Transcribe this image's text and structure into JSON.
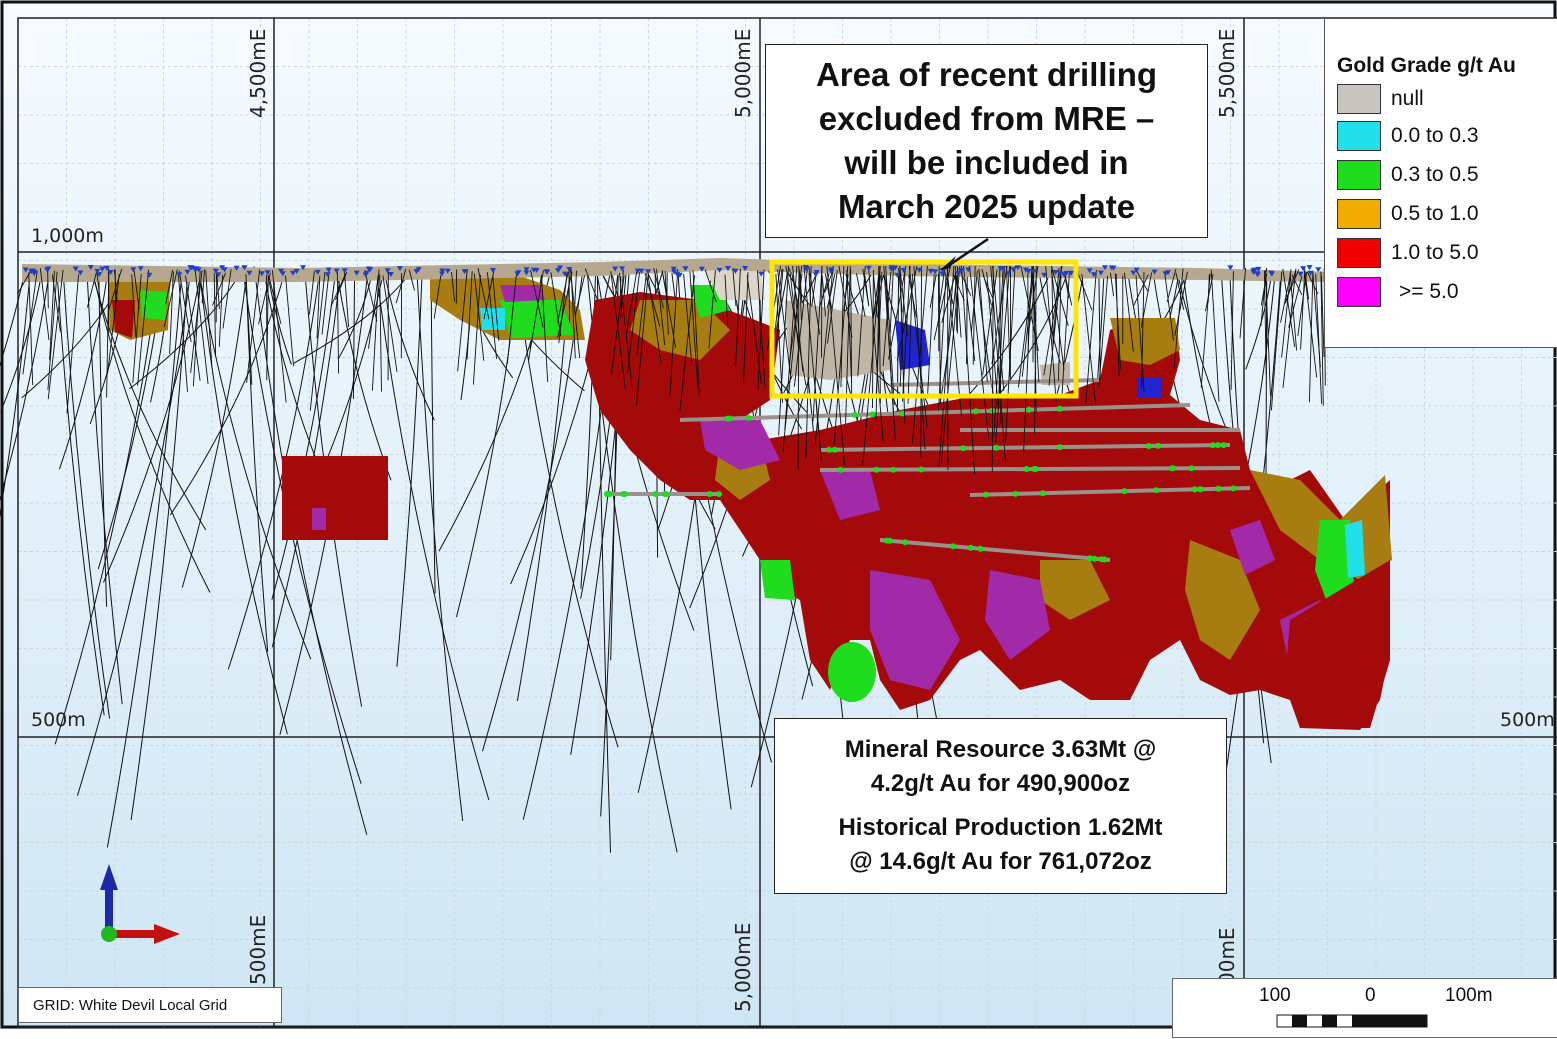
{
  "grid_labels": {
    "easting_top": [
      "4,500mE",
      "5,000mE",
      "5,500mE"
    ],
    "easting_bottom": [
      "500mE",
      "5,000mE",
      "00mE"
    ],
    "rl_left": [
      "1,000m",
      "500m"
    ],
    "rl_right": [
      "500m"
    ]
  },
  "callout": {
    "lines": [
      "Area of recent drilling",
      "excluded from MRE –",
      "will be included in",
      "March 2025 update"
    ]
  },
  "resource": {
    "line1": "Mineral Resource 3.63Mt @",
    "line2": "4.2g/t Au for 490,900oz",
    "line3": "Historical Production 1.62Mt",
    "line4": "@ 14.6g/t Au for 761,072oz"
  },
  "legend": {
    "title": "Gold Grade g/t Au",
    "items": [
      {
        "label": "null",
        "color": "#c8c4c0"
      },
      {
        "label": "0.0 to 0.3",
        "color": "#22e0ea"
      },
      {
        "label": "0.3 to 0.5",
        "color": "#1fdc1f"
      },
      {
        "label": "0.5 to 1.0",
        "color": "#f2ac00"
      },
      {
        "label": "1.0 to 5.0",
        "color": "#ee0000"
      },
      {
        "label": ">= 5.0",
        "color": "#ff00ff"
      }
    ]
  },
  "grid_name": "GRID: White Devil Local Grid",
  "scale": {
    "labels": [
      "100",
      "0",
      "100m"
    ]
  },
  "colors": {
    "orebody_dark_red": "#a40a0a",
    "orebody_olive": "#a77d12",
    "purple": "#a22aa8",
    "highlight_box": "#ffe600",
    "surface": "#b5a88e",
    "drillhole_collar": "#1f3fc8"
  }
}
